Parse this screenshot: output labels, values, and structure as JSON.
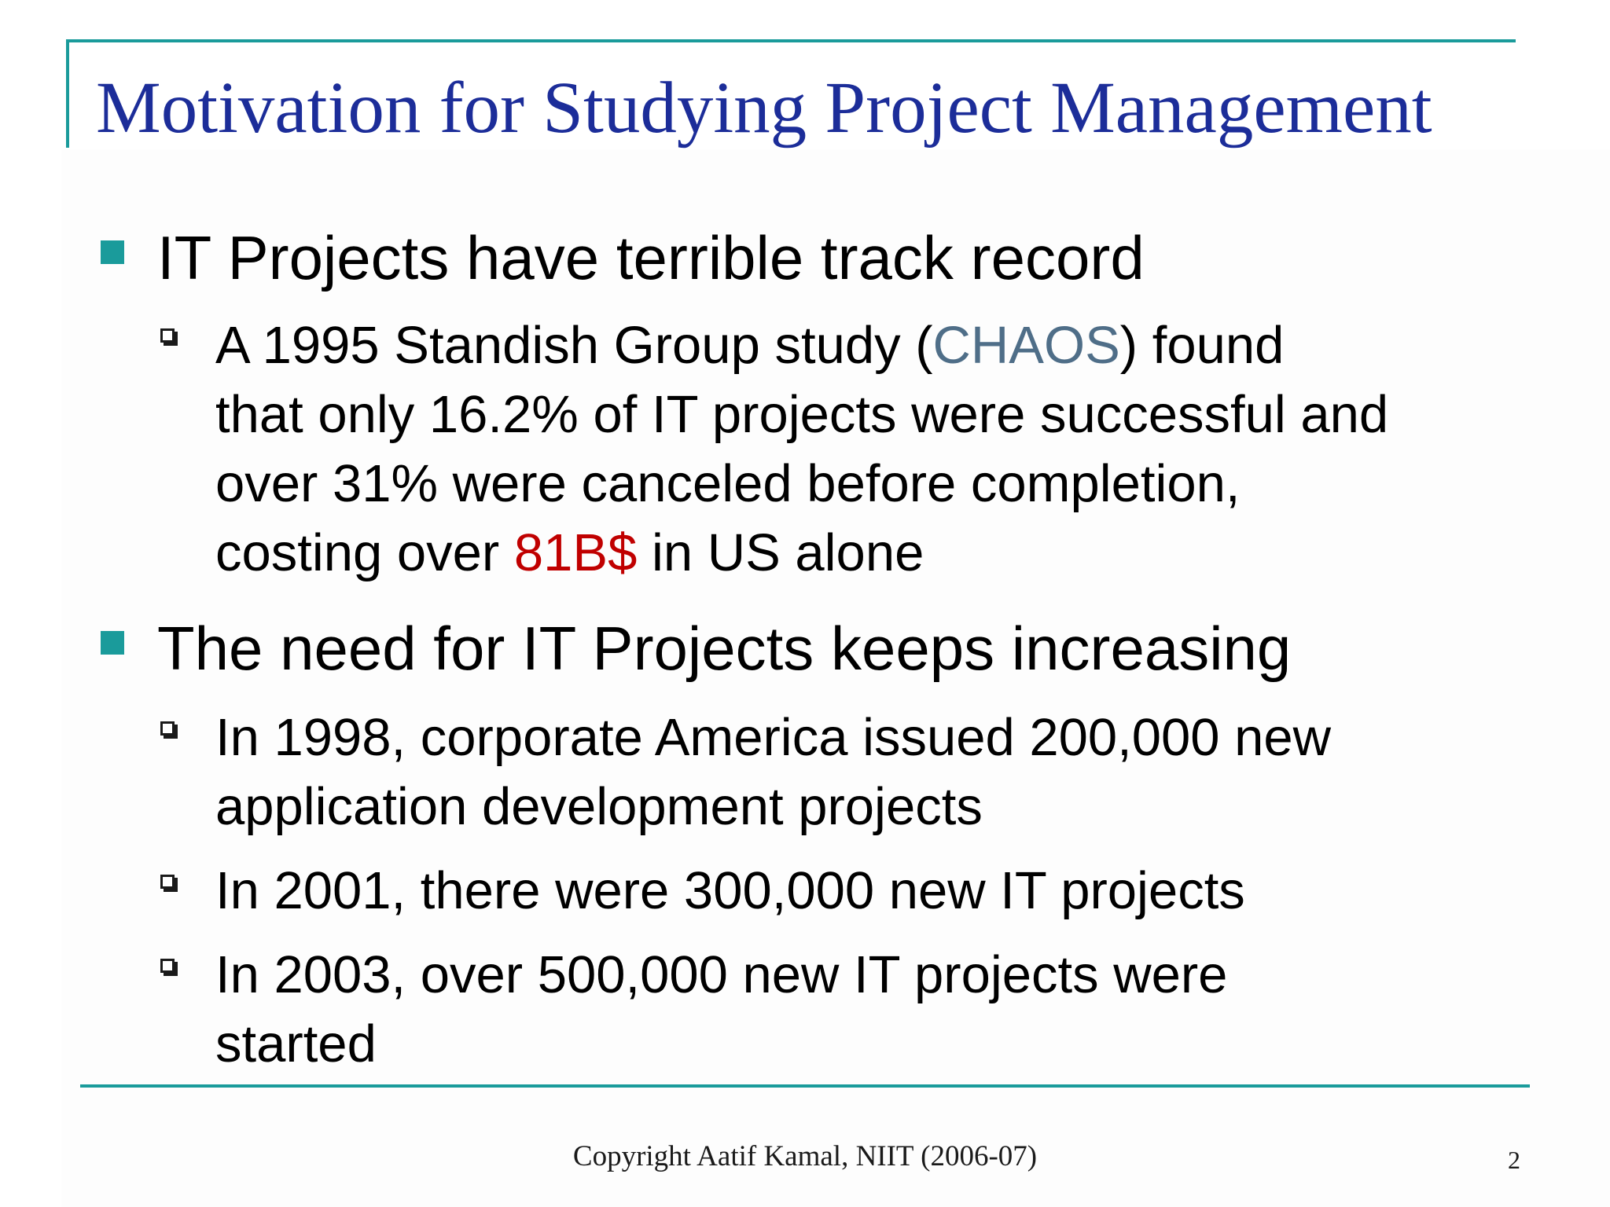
{
  "slide": {
    "title": "Motivation for Studying Project Management",
    "bullets": [
      {
        "text": "IT Projects have terrible track record",
        "sub": [
          {
            "lines": [
              [
                "A 1995 Standish Group study (",
                "CHAOS",
                ") found"
              ],
              "that only 16.2% of IT projects were successful and",
              "over 31% were canceled before completion,",
              [
                "costing over ",
                "81B$",
                " in US alone"
              ]
            ]
          }
        ]
      },
      {
        "text": "The need for IT Projects keeps increasing",
        "sub": [
          {
            "lines": [
              "In 1998, corporate America issued 200,000 new",
              "application development projects"
            ]
          },
          {
            "lines": [
              "In 2001, there were 300,000 new IT projects"
            ]
          },
          {
            "lines": [
              "In 2003, over 500,000 new IT projects were",
              "started"
            ]
          }
        ]
      }
    ],
    "footer": "Copyright Aatif Kamal, NIIT (2006-07)",
    "page_number": "2"
  },
  "colors": {
    "accent": "#1a9b9b",
    "title": "#1c2d99",
    "highlight_blue": "#4f6e88",
    "highlight_red": "#c00000"
  }
}
